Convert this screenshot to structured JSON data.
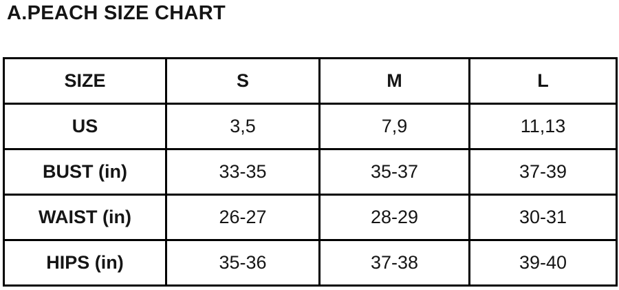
{
  "page_title": "A.PEACH SIZE CHART",
  "chart_data": {
    "type": "table",
    "title": "A.PEACH SIZE CHART",
    "columns": [
      "SIZE",
      "S",
      "M",
      "L"
    ],
    "rows": [
      [
        "US",
        "3,5",
        "7,9",
        "11,13"
      ],
      [
        "BUST (in)",
        "33-35",
        "35-37",
        "37-39"
      ],
      [
        "WAIST (in)",
        "26-27",
        "28-29",
        "30-31"
      ],
      [
        "HIPS (in)",
        "35-36",
        "37-38",
        "39-40"
      ]
    ],
    "layout": {
      "header_bold": true,
      "row_label_bold": true,
      "grid": true
    }
  },
  "colors": {
    "border": "#000000",
    "text": "#151515",
    "background": "#ffffff"
  }
}
